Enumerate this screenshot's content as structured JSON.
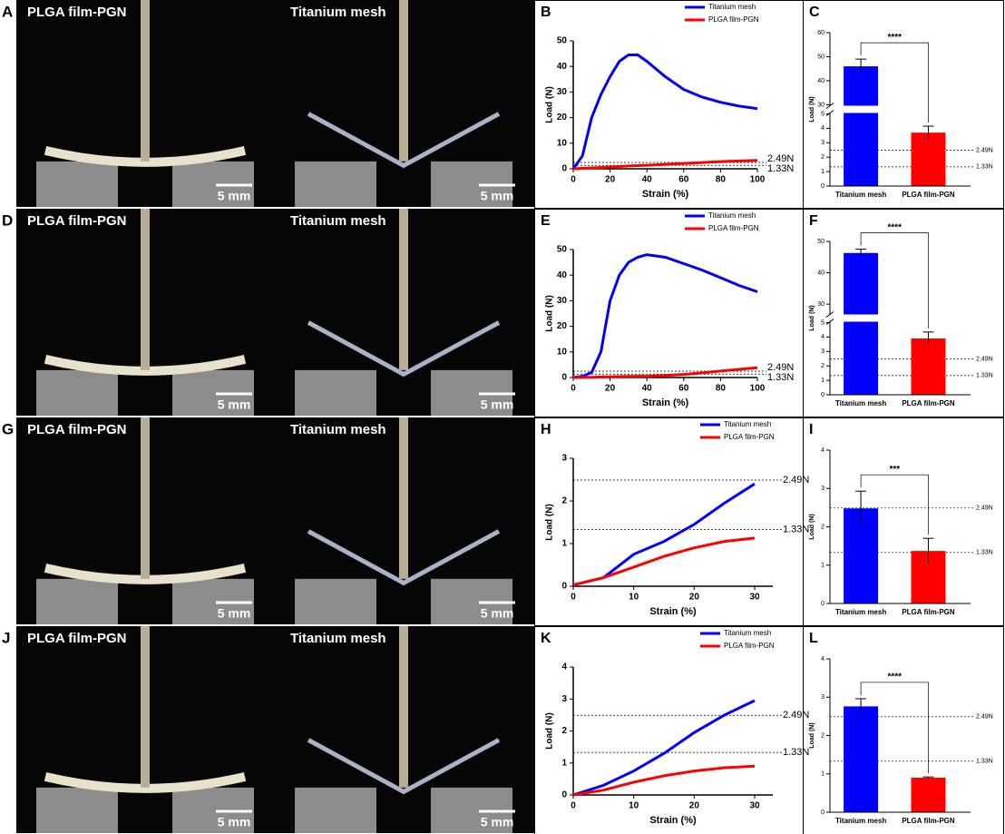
{
  "photos": [
    {
      "panel": "A",
      "left": "PLGA film-PGN",
      "right": "Titanium mesh",
      "scale_left": "5 mm",
      "scale_right": "5 mm"
    },
    {
      "panel": "D",
      "left": "PLGA film-PGN",
      "right": "Titanium mesh",
      "scale_left": "5 mm",
      "scale_right": "5 mm"
    },
    {
      "panel": "G",
      "left": "PLGA film-PGN",
      "right": "Titanium mesh",
      "scale_left": "5 mm",
      "scale_right": "5 mm"
    },
    {
      "panel": "J",
      "left": "PLGA film-PGN",
      "right": "Titanium mesh",
      "scale_left": "5 mm",
      "scale_right": "5 mm"
    }
  ],
  "chart_data": [
    {
      "type": "line",
      "panel": "B",
      "x_label": "Strain (%)",
      "y_label": "Load (N)",
      "legend": "upper right",
      "x": [
        0,
        5,
        10,
        15,
        20,
        25,
        30,
        35,
        40,
        50,
        60,
        70,
        80,
        90,
        100
      ],
      "series": [
        {
          "name": "Titanium mesh",
          "color": "#0000ff",
          "values": [
            0,
            5,
            20,
            29,
            36,
            42,
            44.5,
            44.5,
            42,
            36,
            31,
            28,
            26,
            24.5,
            23.5
          ]
        },
        {
          "name": "PLGA film-PGN",
          "color": "#ff0000",
          "values": [
            0,
            0.2,
            0.35,
            0.5,
            0.7,
            0.9,
            1.1,
            1.25,
            1.4,
            1.75,
            2.1,
            2.45,
            2.8,
            3.05,
            3.3
          ]
        }
      ],
      "reference_lines": [
        {
          "value": 2.49,
          "label": "2.49N"
        },
        {
          "value": 1.33,
          "label": "1.33N"
        }
      ],
      "xlim": [
        0,
        100
      ],
      "xticks": [
        0,
        20,
        40,
        60,
        80,
        100
      ],
      "ylim": [
        0,
        50
      ],
      "yticks": [
        0,
        10,
        20,
        30,
        40,
        50
      ]
    },
    {
      "type": "bar",
      "panel": "C",
      "y_label": "Load (N)",
      "categories": [
        "Titanium mesh",
        "PLGA film-PGN"
      ],
      "values": [
        46,
        3.7
      ],
      "errors": [
        3,
        0.45
      ],
      "colors": [
        "#0000ff",
        "#ff0000"
      ],
      "significance": "****",
      "reference_lines": [
        {
          "value": 2.49,
          "label": "2.49N"
        },
        {
          "value": 1.33,
          "label": "1.33N"
        }
      ],
      "ylim": [
        0,
        60
      ],
      "y_break": [
        5,
        30
      ],
      "yticks": [
        0,
        1,
        2,
        3,
        4,
        5,
        30,
        40,
        50,
        60
      ]
    },
    {
      "type": "line",
      "panel": "E",
      "x_label": "Strain (%)",
      "y_label": "Load (N)",
      "legend": "upper right",
      "x": [
        0,
        5,
        10,
        15,
        20,
        25,
        30,
        35,
        40,
        50,
        60,
        70,
        80,
        90,
        100
      ],
      "series": [
        {
          "name": "Titanium mesh",
          "color": "#0000ff",
          "values": [
            0,
            0.5,
            2,
            10,
            30,
            40,
            45,
            47,
            48,
            47,
            44.5,
            42,
            39,
            36,
            33.5
          ]
        },
        {
          "name": "PLGA film-PGN",
          "color": "#ff0000",
          "values": [
            0,
            0.05,
            0.1,
            0.2,
            0.3,
            0.4,
            0.45,
            0.5,
            0.5,
            0.8,
            1.2,
            1.8,
            2.5,
            3.2,
            3.8
          ]
        }
      ],
      "reference_lines": [
        {
          "value": 2.49,
          "label": "2.49N"
        },
        {
          "value": 1.33,
          "label": "1.33N"
        }
      ],
      "xlim": [
        0,
        100
      ],
      "xticks": [
        0,
        20,
        40,
        60,
        80,
        100
      ],
      "ylim": [
        0,
        50
      ],
      "yticks": [
        0,
        10,
        20,
        30,
        40,
        50
      ]
    },
    {
      "type": "bar",
      "panel": "F",
      "y_label": "Load (N)",
      "categories": [
        "Titanium mesh",
        "PLGA film-PGN"
      ],
      "values": [
        46.3,
        3.9
      ],
      "errors": [
        1.2,
        0.45
      ],
      "colors": [
        "#0000ff",
        "#ff0000"
      ],
      "significance": "****",
      "reference_lines": [
        {
          "value": 2.49,
          "label": "2.49N"
        },
        {
          "value": 1.33,
          "label": "1.33N"
        }
      ],
      "ylim": [
        0,
        50
      ],
      "y_break": [
        5,
        27
      ],
      "yticks": [
        0,
        1,
        2,
        3,
        4,
        5,
        30,
        40,
        50
      ]
    },
    {
      "type": "line",
      "panel": "H",
      "x_label": "Strain (%)",
      "y_label": "Load (N)",
      "legend": "upper right",
      "x": [
        0,
        5,
        10,
        15,
        20,
        25,
        30
      ],
      "series": [
        {
          "name": "Titanium mesh",
          "color": "#0000ff",
          "values": [
            0.03,
            0.2,
            0.75,
            1.05,
            1.45,
            1.95,
            2.4
          ]
        },
        {
          "name": "PLGA film-PGN",
          "color": "#ff0000",
          "values": [
            0.03,
            0.2,
            0.45,
            0.7,
            0.9,
            1.05,
            1.13
          ]
        }
      ],
      "reference_lines": [
        {
          "value": 2.49,
          "label": "2.49N"
        },
        {
          "value": 1.33,
          "label": "1.33N"
        }
      ],
      "xlim": [
        0,
        33
      ],
      "xticks": [
        0,
        10,
        20,
        30
      ],
      "ylim": [
        0,
        3
      ],
      "yticks": [
        0,
        1,
        2,
        3
      ]
    },
    {
      "type": "bar",
      "panel": "I",
      "y_label": "Load (N)",
      "categories": [
        "Titanium mesh",
        "PLGA film-PGN"
      ],
      "values": [
        2.48,
        1.37
      ],
      "errors": [
        0.45,
        0.33
      ],
      "colors": [
        "#0000ff",
        "#ff0000"
      ],
      "significance": "***",
      "reference_lines": [
        {
          "value": 2.49,
          "label": "2.49N"
        },
        {
          "value": 1.33,
          "label": "1.33N"
        }
      ],
      "ylim": [
        0,
        4
      ],
      "yticks": [
        0,
        1,
        2,
        3,
        4
      ]
    },
    {
      "type": "line",
      "panel": "K",
      "x_label": "Strain (%)",
      "y_label": "Load (N)",
      "legend": "upper right",
      "x": [
        0,
        5,
        10,
        15,
        20,
        25,
        30
      ],
      "series": [
        {
          "name": "Titanium mesh",
          "color": "#0000ff",
          "values": [
            0,
            0.3,
            0.75,
            1.3,
            1.95,
            2.5,
            2.95
          ]
        },
        {
          "name": "PLGA film-PGN",
          "color": "#ff0000",
          "values": [
            0,
            0.15,
            0.4,
            0.6,
            0.75,
            0.85,
            0.9
          ]
        }
      ],
      "reference_lines": [
        {
          "value": 2.49,
          "label": "2.49N"
        },
        {
          "value": 1.33,
          "label": "1.33N"
        }
      ],
      "xlim": [
        0,
        33
      ],
      "xticks": [
        0,
        10,
        20,
        30
      ],
      "ylim": [
        0,
        4
      ],
      "yticks": [
        0,
        1,
        2,
        3,
        4
      ]
    },
    {
      "type": "bar",
      "panel": "L",
      "y_label": "Load (N)",
      "categories": [
        "Titanium mesh",
        "PLGA film-PGN"
      ],
      "values": [
        2.76,
        0.9
      ],
      "errors": [
        0.2,
        0.02
      ],
      "colors": [
        "#0000ff",
        "#ff0000"
      ],
      "significance": "****",
      "reference_lines": [
        {
          "value": 2.49,
          "label": "2.49N"
        },
        {
          "value": 1.33,
          "label": "1.33N"
        }
      ],
      "ylim": [
        0,
        4
      ],
      "yticks": [
        0,
        1,
        2,
        3,
        4
      ]
    }
  ]
}
